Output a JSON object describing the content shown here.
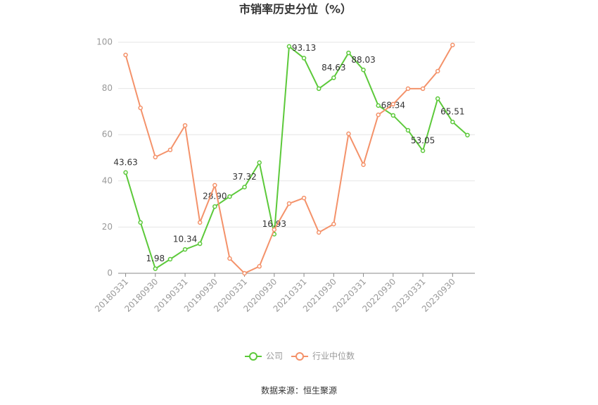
{
  "chart_data": {
    "type": "line",
    "title": "市销率历史分位（%）",
    "categories": [
      "20180331",
      null,
      "20180930",
      null,
      "20190331",
      null,
      "20190930",
      null,
      "20200331",
      null,
      "20200930",
      null,
      "20210331",
      null,
      "20210930",
      null,
      "20220331",
      null,
      "20220930",
      null,
      "20230331",
      null,
      "20230930",
      null
    ],
    "series": [
      {
        "name": "公司",
        "color": "#5cc93a",
        "values": [
          43.63,
          22,
          1.98,
          6.1,
          10.34,
          12.8,
          28.9,
          33.2,
          37.32,
          47.9,
          16.93,
          98.2,
          93.13,
          79.9,
          84.63,
          95.4,
          88.03,
          72.6,
          68.34,
          61.9,
          53.05,
          75.6,
          65.51,
          59.8
        ],
        "value_labels": [
          "43.63",
          null,
          "1.98",
          null,
          "10.34",
          null,
          "28.90",
          null,
          "37.32",
          null,
          "16.93",
          null,
          "93.13",
          null,
          "84.63",
          null,
          "88.03",
          null,
          "68.34",
          null,
          "53.05",
          null,
          "65.51",
          null
        ]
      },
      {
        "name": "行业中位数",
        "color": "#f4926a",
        "values": [
          94.5,
          71.6,
          50.3,
          53.4,
          64.0,
          22.0,
          38.1,
          6.4,
          0,
          3.0,
          18.9,
          30.2,
          32.6,
          17.7,
          21.3,
          60.4,
          47.0,
          68.6,
          73.2,
          79.9,
          79.9,
          87.5,
          98.8,
          null
        ]
      }
    ],
    "ylim": [
      0,
      100
    ],
    "yticks": [
      0,
      20,
      40,
      60,
      80,
      100
    ],
    "grid": true,
    "legend": "bottom",
    "source": "数据来源：恒生聚源"
  }
}
